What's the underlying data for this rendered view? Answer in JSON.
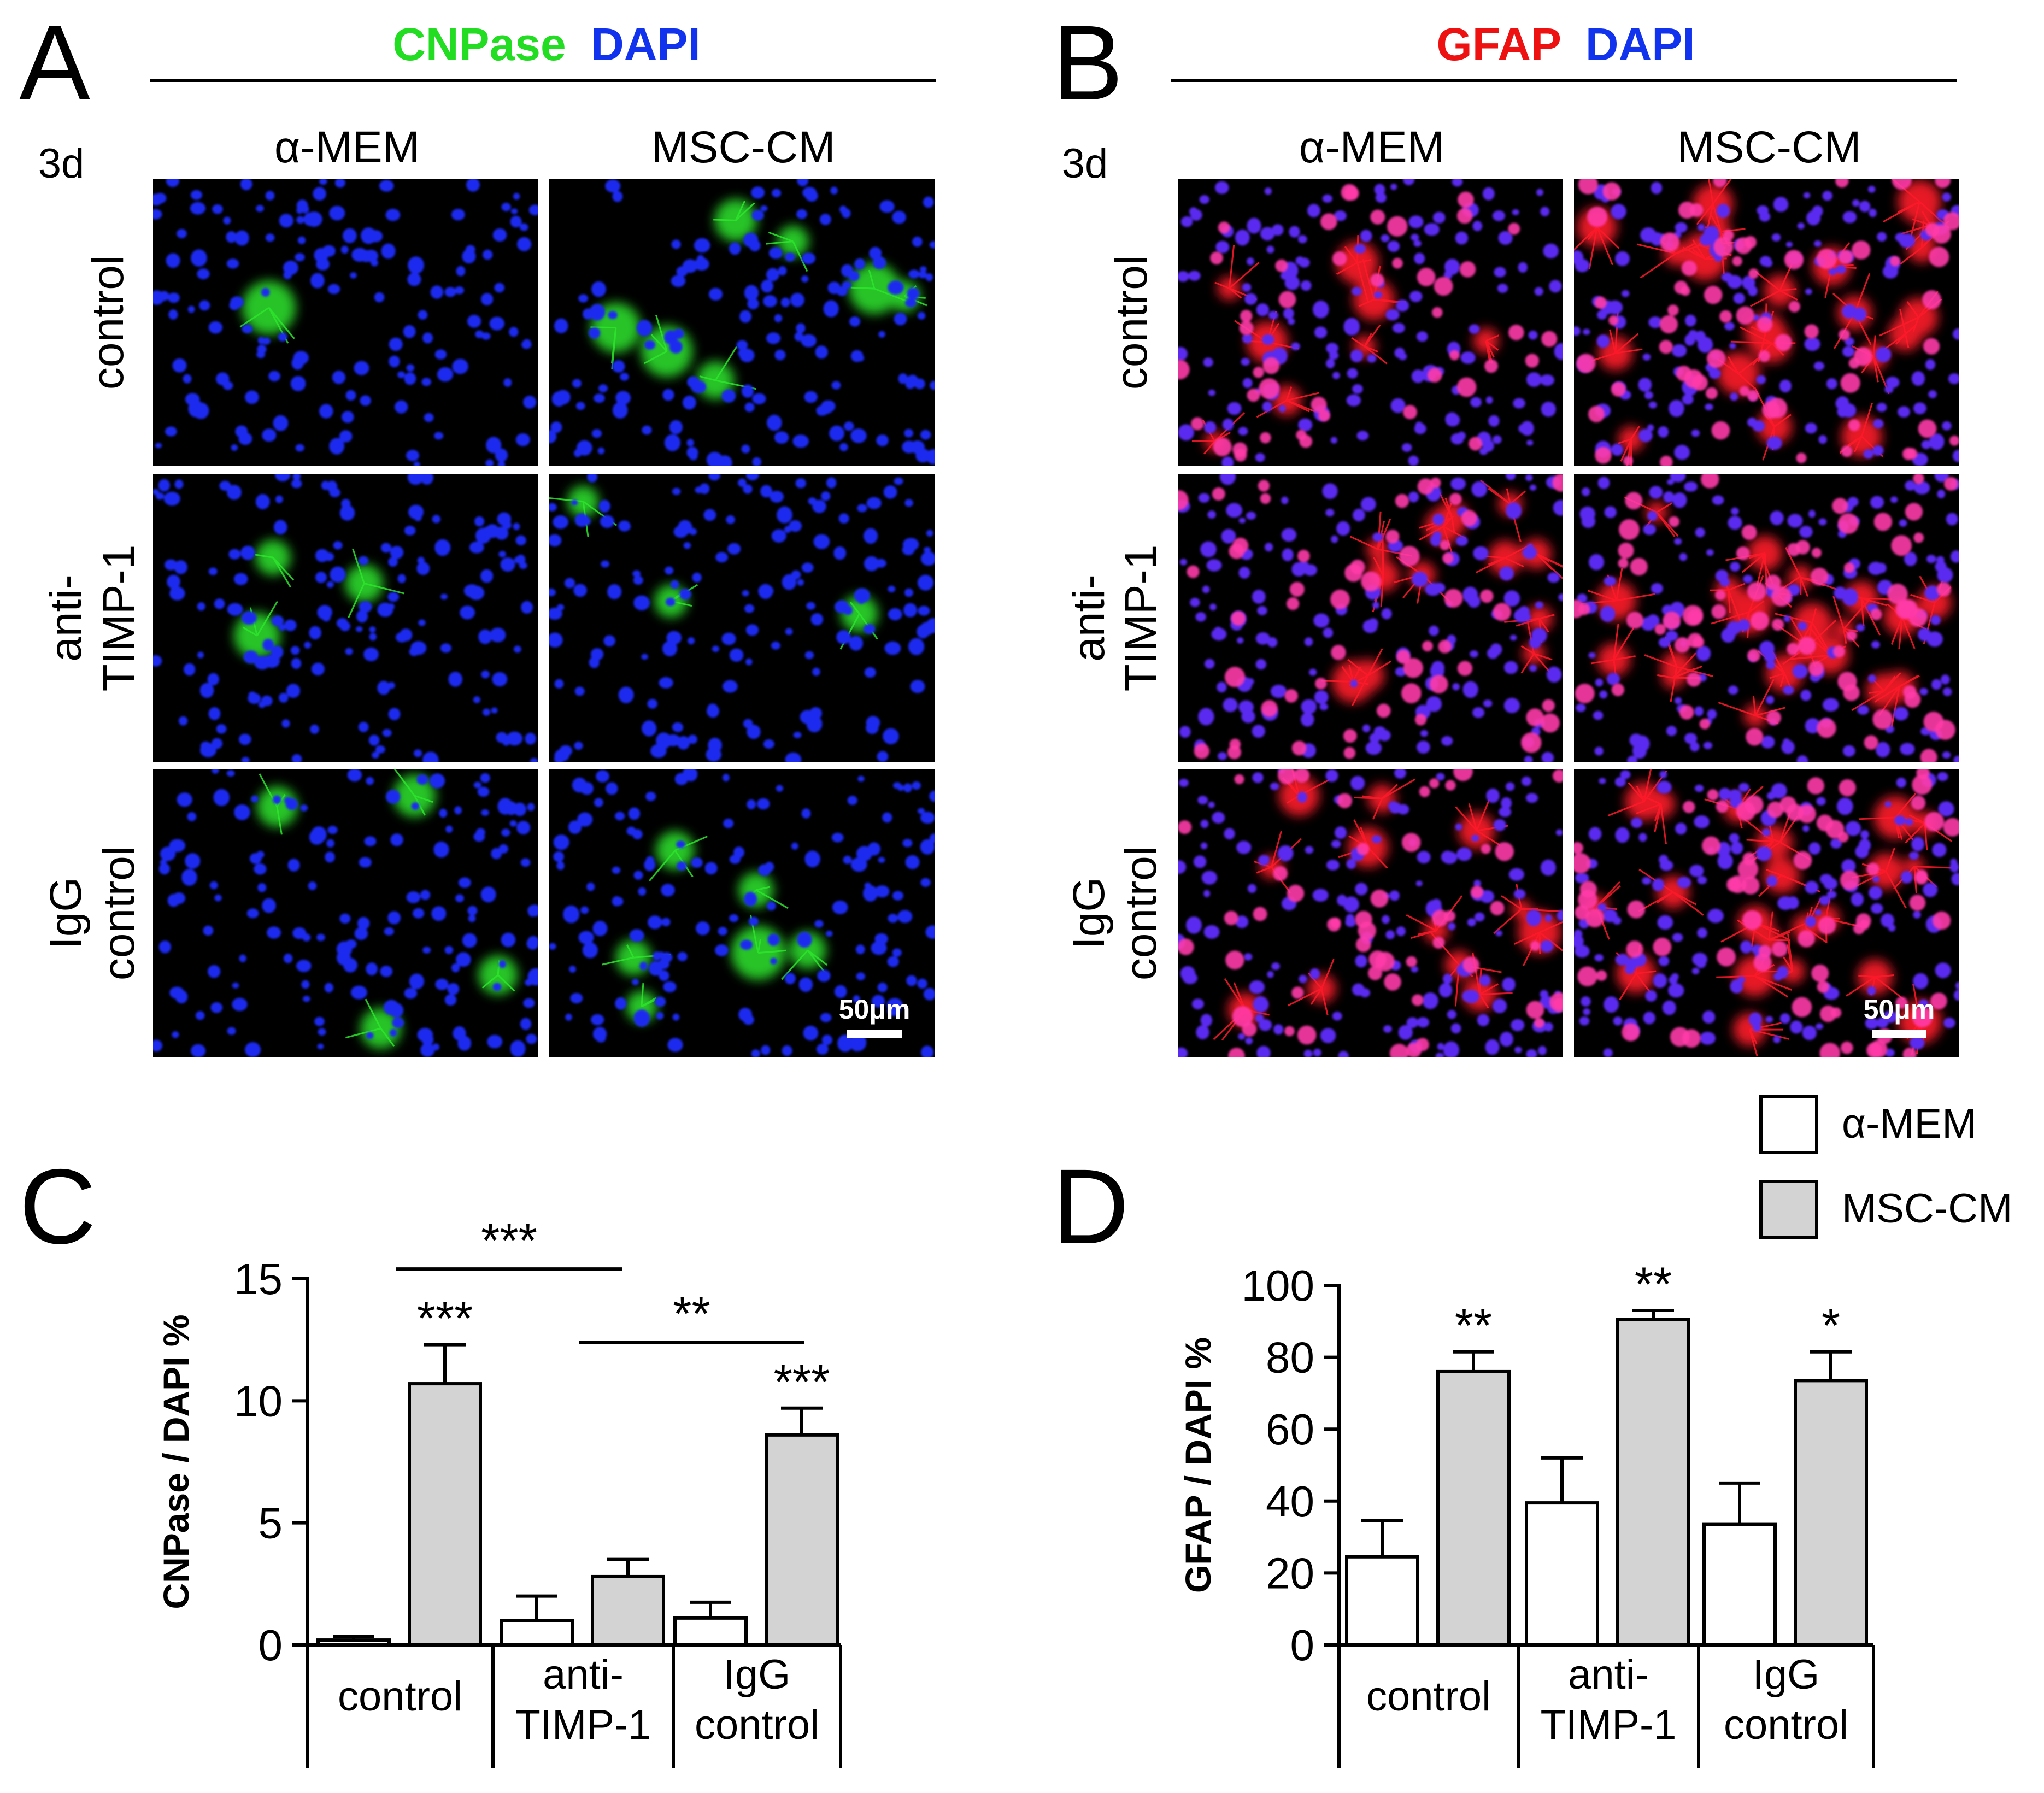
{
  "panels": {
    "A": {
      "letter": "A",
      "title_parts": [
        {
          "text": "CNPase",
          "color": "#22dd22"
        },
        {
          "text": "DAPI",
          "color": "#1133ee"
        }
      ],
      "timepoint": "3d",
      "columns": [
        "α-MEM",
        "MSC-CM"
      ],
      "rows": [
        [
          "control"
        ],
        [
          "anti-",
          "TIMP-1"
        ],
        [
          "IgG",
          "control"
        ]
      ],
      "scale_bar": "50μm",
      "nuclei_color": "#1a2cf0",
      "marker_color": "#2ee62e"
    },
    "B": {
      "letter": "B",
      "title_parts": [
        {
          "text": "GFAP",
          "color": "#ee1111"
        },
        {
          "text": "DAPI",
          "color": "#1133ee"
        }
      ],
      "timepoint": "3d",
      "columns": [
        "α-MEM",
        "MSC-CM"
      ],
      "rows": [
        [
          "control"
        ],
        [
          "anti-",
          "TIMP-1"
        ],
        [
          "IgG",
          "control"
        ]
      ],
      "scale_bar": "50μm",
      "nuclei_color": "#5a2cf0",
      "marker_color": "#ff1a2a"
    },
    "C": {
      "letter": "C"
    },
    "D": {
      "letter": "D"
    }
  },
  "legend": [
    {
      "label": "α-MEM",
      "color": "#ffffff"
    },
    {
      "label": "MSC-CM",
      "color": "#d3d3d3"
    }
  ],
  "chart_data": [
    {
      "type": "bar",
      "panel": "C",
      "ylabel": "CNPase / DAPI %",
      "ylim": [
        0,
        15
      ],
      "yticks": [
        0,
        5,
        10,
        15
      ],
      "categories": [
        [
          "control"
        ],
        [
          "anti-",
          "TIMP-1"
        ],
        [
          "IgG",
          "control"
        ]
      ],
      "series": [
        {
          "name": "α-MEM",
          "values": [
            0.2,
            1.0,
            1.1
          ],
          "errors": [
            0.15,
            1.0,
            0.65
          ]
        },
        {
          "name": "MSC-CM",
          "values": [
            10.7,
            2.8,
            8.6
          ],
          "errors": [
            1.6,
            0.7,
            1.1
          ]
        }
      ],
      "bar_annotations": [
        {
          "category": 0,
          "series": 1,
          "text": "***"
        },
        {
          "category": 2,
          "series": 1,
          "text": "***"
        }
      ],
      "brackets": [
        {
          "from": {
            "category": 0,
            "series": 1
          },
          "to": {
            "category": 1,
            "series": 1
          },
          "y": 15.4,
          "text": "***"
        },
        {
          "from": {
            "category": 1,
            "series": 1
          },
          "to": {
            "category": 2,
            "series": 1
          },
          "y": 12.4,
          "text": "**"
        }
      ]
    },
    {
      "type": "bar",
      "panel": "D",
      "ylabel": "GFAP / DAPI %",
      "ylim": [
        0,
        100
      ],
      "yticks": [
        0,
        20,
        40,
        60,
        80,
        100
      ],
      "categories": [
        [
          "control"
        ],
        [
          "anti-",
          "TIMP-1"
        ],
        [
          "IgG",
          "control"
        ]
      ],
      "series": [
        {
          "name": "α-MEM",
          "values": [
            24.5,
            39.5,
            33.5
          ],
          "errors": [
            10,
            12.5,
            11.5
          ]
        },
        {
          "name": "MSC-CM",
          "values": [
            76,
            90.5,
            73.5
          ],
          "errors": [
            5.5,
            2.5,
            8
          ]
        }
      ],
      "bar_annotations": [
        {
          "category": 0,
          "series": 1,
          "text": "**"
        },
        {
          "category": 1,
          "series": 1,
          "text": "**"
        },
        {
          "category": 2,
          "series": 1,
          "text": "*"
        }
      ],
      "brackets": []
    }
  ]
}
